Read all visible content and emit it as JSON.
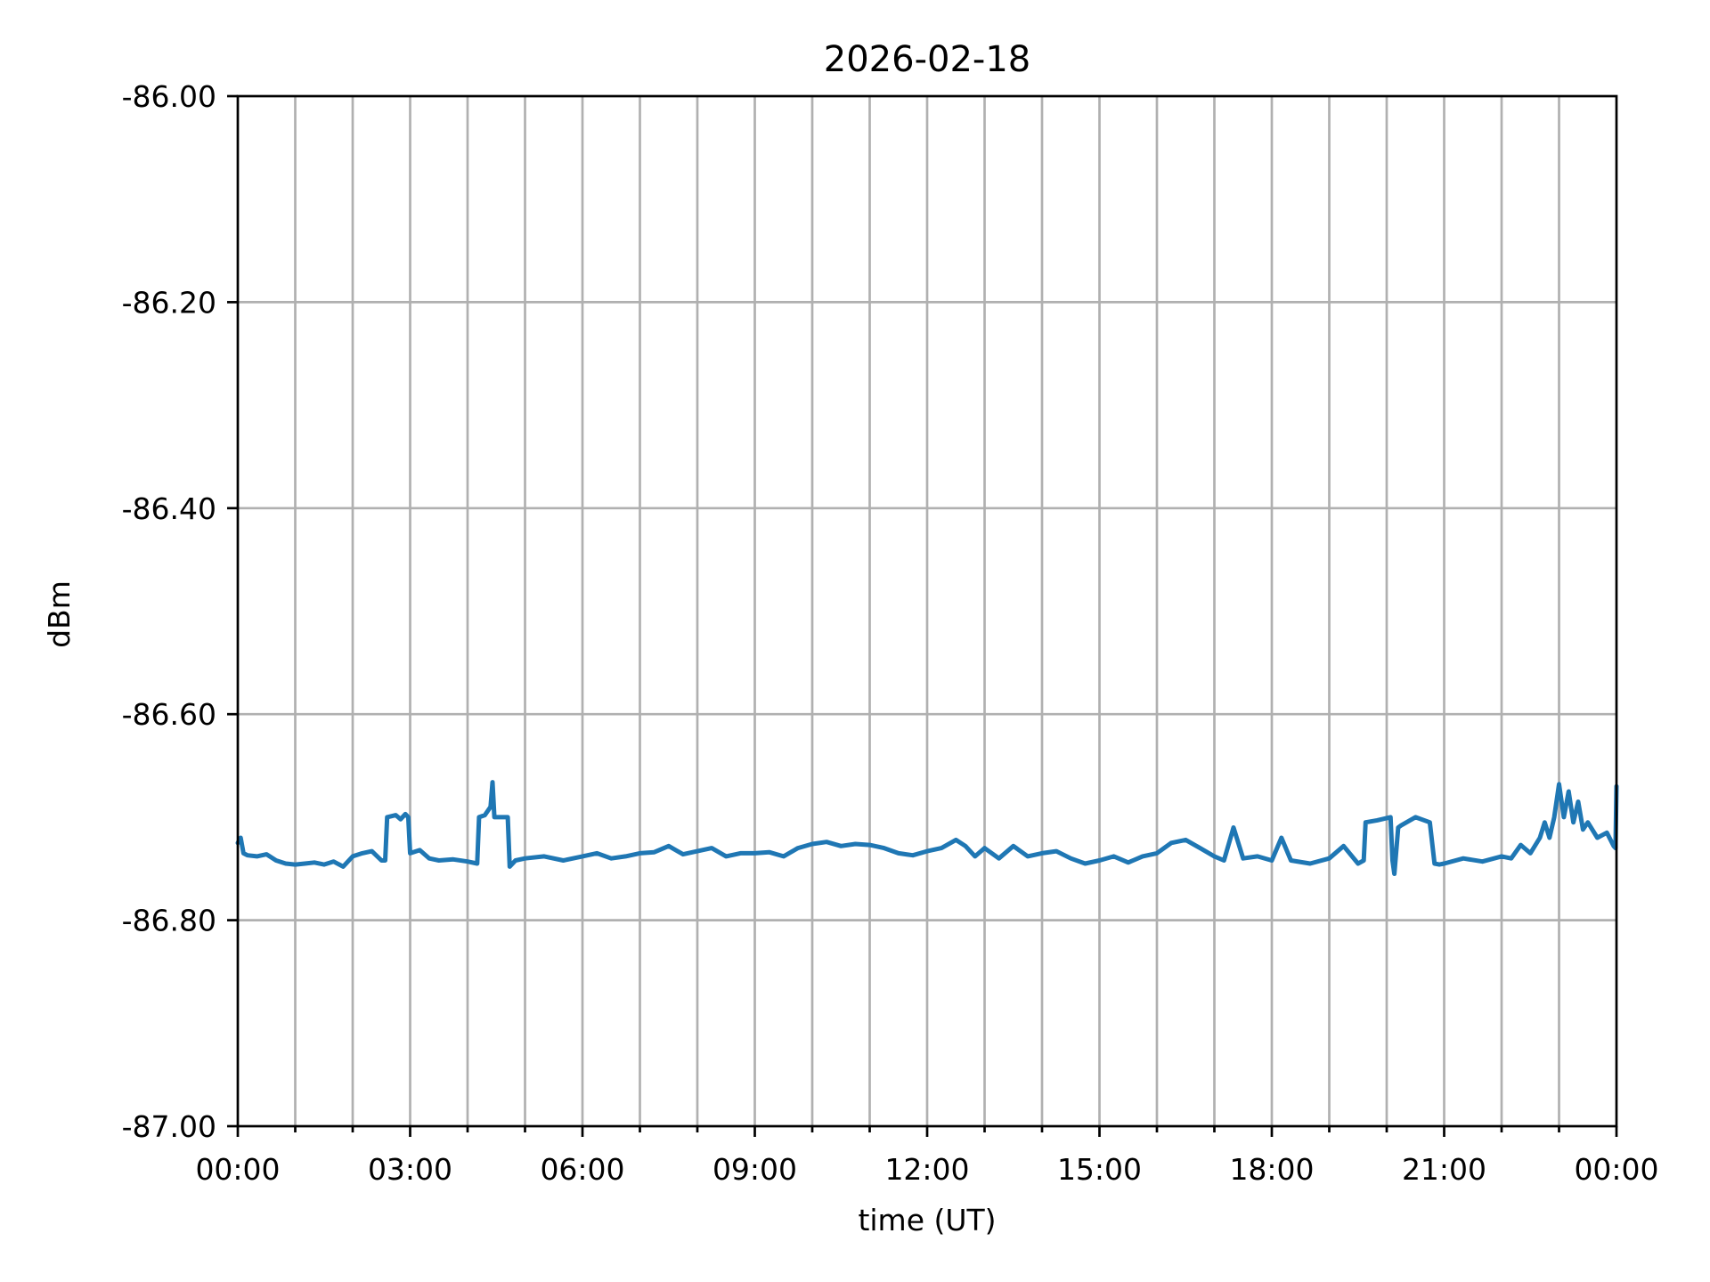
{
  "chart_data": {
    "type": "line",
    "title": "2026-02-18",
    "xlabel": "time (UT)",
    "ylabel": "dBm",
    "xlim": [
      "00:00",
      "24:00"
    ],
    "ylim": [
      -87.0,
      -86.0
    ],
    "x_tick_labels": [
      "00:00",
      "03:00",
      "06:00",
      "09:00",
      "12:00",
      "15:00",
      "18:00",
      "21:00",
      "00:00"
    ],
    "y_tick_labels": [
      "-86.00",
      "-86.20",
      "-86.40",
      "-86.60",
      "-86.80",
      "-87.00"
    ],
    "y_ticks": [
      -86.0,
      -86.2,
      -86.4,
      -86.6,
      -86.8,
      -87.0
    ],
    "x_minor_ticks": "hourly",
    "grid": true,
    "line_color": "#1f77b4",
    "series": [
      {
        "x": [
          "00:00",
          "00:03",
          "00:06",
          "00:10",
          "00:20",
          "00:30",
          "00:40",
          "00:50",
          "01:00",
          "01:10",
          "01:20",
          "01:30",
          "01:40",
          "01:50",
          "02:00",
          "02:10",
          "02:20",
          "02:30",
          "02:34",
          "02:36",
          "02:45",
          "02:50",
          "02:55",
          "02:58",
          "03:00",
          "03:10",
          "03:20",
          "03:30",
          "03:45",
          "04:00",
          "04:10",
          "04:12",
          "04:18",
          "04:24",
          "04:26",
          "04:28",
          "04:35",
          "04:42",
          "04:44",
          "04:50",
          "05:00",
          "05:20",
          "05:40",
          "06:00",
          "06:15",
          "06:30",
          "06:45",
          "07:00",
          "07:15",
          "07:30",
          "07:45",
          "08:00",
          "08:15",
          "08:30",
          "08:45",
          "09:00",
          "09:15",
          "09:30",
          "09:45",
          "10:00",
          "10:15",
          "10:30",
          "10:45",
          "11:00",
          "11:15",
          "11:30",
          "11:45",
          "12:00",
          "12:15",
          "12:30",
          "12:40",
          "12:50",
          "13:00",
          "13:15",
          "13:30",
          "13:45",
          "14:00",
          "14:15",
          "14:30",
          "14:45",
          "15:00",
          "15:15",
          "15:30",
          "15:45",
          "16:00",
          "16:15",
          "16:30",
          "16:45",
          "17:00",
          "17:10",
          "17:20",
          "17:30",
          "17:45",
          "18:00",
          "18:10",
          "18:20",
          "18:40",
          "19:00",
          "19:15",
          "19:30",
          "19:36",
          "19:38",
          "19:50",
          "20:04",
          "20:06",
          "20:08",
          "20:12",
          "20:15",
          "20:30",
          "20:45",
          "20:50",
          "20:55",
          "21:00",
          "21:20",
          "21:40",
          "22:00",
          "22:10",
          "22:20",
          "22:30",
          "22:40",
          "22:45",
          "22:50",
          "22:55",
          "23:00",
          "23:05",
          "23:10",
          "23:15",
          "23:20",
          "23:25",
          "23:30",
          "23:40",
          "23:50",
          "23:57",
          "23:59",
          "24:00"
        ],
        "y": [
          -86.725,
          -86.72,
          -86.735,
          -86.737,
          -86.738,
          -86.736,
          -86.742,
          -86.745,
          -86.746,
          -86.745,
          -86.744,
          -86.746,
          -86.743,
          -86.748,
          -86.738,
          -86.735,
          -86.733,
          -86.742,
          -86.742,
          -86.7,
          -86.698,
          -86.702,
          -86.697,
          -86.7,
          -86.735,
          -86.732,
          -86.74,
          -86.742,
          -86.741,
          -86.743,
          -86.745,
          -86.7,
          -86.698,
          -86.69,
          -86.666,
          -86.7,
          -86.7,
          -86.7,
          -86.748,
          -86.742,
          -86.74,
          -86.738,
          -86.742,
          -86.738,
          -86.735,
          -86.74,
          -86.738,
          -86.735,
          -86.734,
          -86.728,
          -86.736,
          -86.733,
          -86.73,
          -86.738,
          -86.735,
          -86.735,
          -86.734,
          -86.738,
          -86.73,
          -86.726,
          -86.724,
          -86.728,
          -86.726,
          -86.727,
          -86.73,
          -86.735,
          -86.737,
          -86.733,
          -86.73,
          -86.722,
          -86.728,
          -86.738,
          -86.73,
          -86.74,
          -86.728,
          -86.738,
          -86.735,
          -86.733,
          -86.74,
          -86.745,
          -86.742,
          -86.738,
          -86.744,
          -86.738,
          -86.735,
          -86.725,
          -86.722,
          -86.73,
          -86.738,
          -86.742,
          -86.71,
          -86.74,
          -86.738,
          -86.742,
          -86.72,
          -86.742,
          -86.745,
          -86.74,
          -86.728,
          -86.745,
          -86.742,
          -86.705,
          -86.703,
          -86.7,
          -86.742,
          -86.755,
          -86.71,
          -86.708,
          -86.7,
          -86.705,
          -86.745,
          -86.746,
          -86.745,
          -86.74,
          -86.743,
          -86.738,
          -86.74,
          -86.727,
          -86.735,
          -86.72,
          -86.705,
          -86.72,
          -86.7,
          -86.668,
          -86.7,
          -86.675,
          -86.705,
          -86.685,
          -86.712,
          -86.705,
          -86.72,
          -86.715,
          -86.728,
          -86.73,
          -86.67
        ]
      }
    ]
  }
}
